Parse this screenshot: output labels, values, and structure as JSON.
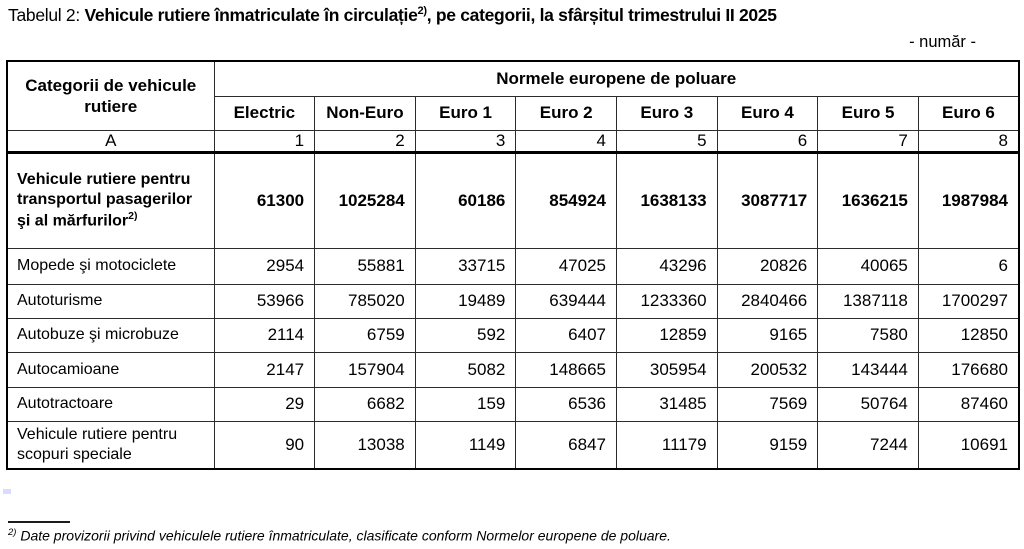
{
  "title": {
    "prefix": "Tabelul 2: ",
    "main": "Vehicule rutiere înmatriculate în circulație",
    "superscript": "2)",
    "suffix": ", pe categorii, la sfârșitul trimestrului II 2025"
  },
  "unit_note": "- număr -",
  "table": {
    "corner_header": "Categorii de vehicule rutiere",
    "group_header": "Normele europene de poluare",
    "column_headers": [
      "Electric",
      "Non-Euro",
      "Euro 1",
      "Euro 2",
      "Euro 3",
      "Euro 4",
      "Euro 5",
      "Euro 6"
    ],
    "index_row": [
      "A",
      "1",
      "2",
      "3",
      "4",
      "5",
      "6",
      "7",
      "8"
    ],
    "rows": [
      {
        "label": "Vehicule rutiere pentru transportul pasagerilor şi al mărfurilor",
        "label_superscript": "2)",
        "bold": true,
        "values": [
          "61300",
          "1025284",
          "60186",
          "854924",
          "1638133",
          "3087717",
          "1636215",
          "1987984"
        ]
      },
      {
        "label": "Mopede şi motociclete",
        "bold": false,
        "values": [
          "2954",
          "55881",
          "33715",
          "47025",
          "43296",
          "20826",
          "40065",
          "6"
        ]
      },
      {
        "label": "Autoturisme",
        "bold": false,
        "values": [
          "53966",
          "785020",
          "19489",
          "639444",
          "1233360",
          "2840466",
          "1387118",
          "1700297"
        ]
      },
      {
        "label": "Autobuze şi microbuze",
        "bold": false,
        "values": [
          "2114",
          "6759",
          "592",
          "6407",
          "12859",
          "9165",
          "7580",
          "12850"
        ]
      },
      {
        "label": "Autocamioane",
        "bold": false,
        "values": [
          "2147",
          "157904",
          "5082",
          "148665",
          "305954",
          "200532",
          "143444",
          "176680"
        ]
      },
      {
        "label": "Autotractoare",
        "bold": false,
        "values": [
          "29",
          "6682",
          "159",
          "6536",
          "31485",
          "7569",
          "50764",
          "87460"
        ]
      },
      {
        "label": "Vehicule rutiere pentru scopuri speciale",
        "bold": false,
        "values": [
          "90",
          "13038",
          "1149",
          "6847",
          "11179",
          "9159",
          "7244",
          "10691"
        ]
      }
    ]
  },
  "footnote": {
    "superscript": "2)",
    "text": " Date provizorii privind vehiculele rutiere înmatriculate, clasificate conform Normelor europene de poluare."
  }
}
